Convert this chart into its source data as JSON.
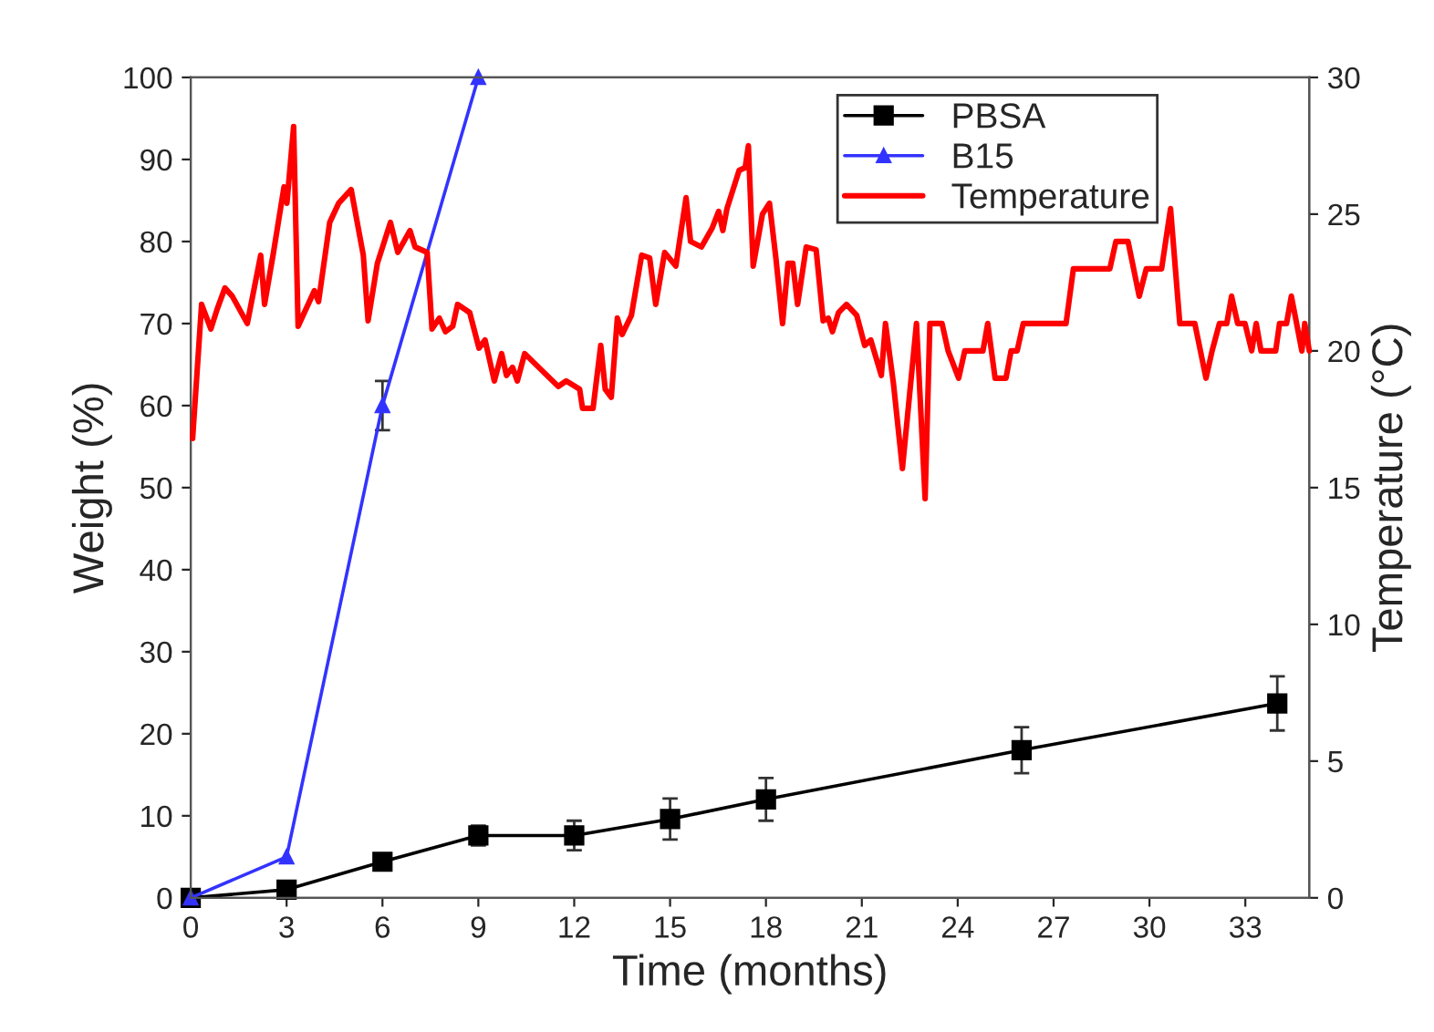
{
  "chart_data": {
    "type": "line",
    "xlabel": "Time (months)",
    "ylabel": "Weight (%)",
    "y2label": "Temperature (°C)",
    "xlim": [
      0,
      35
    ],
    "xticks": [
      0,
      3,
      6,
      9,
      12,
      15,
      18,
      21,
      24,
      27,
      30,
      33
    ],
    "ylim": [
      0,
      100
    ],
    "yticks": [
      0,
      10,
      20,
      30,
      40,
      50,
      60,
      70,
      80,
      90,
      100
    ],
    "y2lim": [
      0,
      30
    ],
    "y2ticks": [
      0,
      5,
      10,
      15,
      20,
      25,
      30
    ],
    "legend": "top right",
    "grid": false,
    "series": [
      {
        "name": "PBSA",
        "color": "#000000",
        "marker": "square",
        "x": [
          0,
          3,
          6,
          9,
          12,
          15,
          18,
          26,
          34
        ],
        "values": [
          0,
          1.0,
          4.4,
          7.6,
          7.6,
          9.6,
          12.0,
          18.0,
          23.7
        ],
        "errors": [
          null,
          null,
          0.7,
          1.2,
          1.8,
          2.5,
          2.6,
          2.8,
          3.3
        ]
      },
      {
        "name": "B15",
        "color": "#3333ff",
        "marker": "triangle",
        "x": [
          0,
          3,
          6,
          9
        ],
        "values": [
          0,
          5,
          60,
          100
        ],
        "errors": [
          null,
          null,
          3,
          null
        ]
      },
      {
        "name": "Temperature",
        "color": "#ff0000",
        "marker": "none",
        "axis": "y2",
        "x": [
          0.06,
          0.34,
          0.63,
          0.82,
          1.07,
          1.3,
          1.77,
          2.19,
          2.31,
          2.59,
          2.92,
          3.01,
          3.22,
          3.36,
          3.87,
          4.0,
          4.35,
          4.63,
          5.02,
          5.4,
          5.55,
          5.84,
          6.25,
          6.48,
          6.86,
          7.02,
          7.4,
          7.55,
          7.78,
          7.97,
          8.2,
          8.35,
          8.73,
          9.02,
          9.21,
          9.5,
          9.73,
          9.88,
          10.07,
          10.22,
          10.45,
          11.5,
          11.75,
          12.17,
          12.26,
          12.59,
          12.83,
          12.97,
          13.16,
          13.35,
          13.5,
          13.79,
          14.11,
          14.36,
          14.55,
          14.83,
          15.18,
          15.5,
          15.64,
          15.98,
          16.32,
          16.52,
          16.65,
          16.78,
          17.16,
          17.35,
          17.45,
          17.6,
          17.89,
          18.11,
          18.31,
          18.52,
          18.69,
          18.84,
          18.99,
          19.26,
          19.57,
          19.79,
          19.95,
          20.08,
          20.27,
          20.52,
          20.84,
          21.09,
          21.28,
          21.61,
          21.74,
          21.99,
          22.27,
          22.71,
          22.98,
          23.13,
          23.51,
          23.7,
          24.03,
          24.22,
          24.79,
          24.94,
          25.17,
          25.51,
          25.67,
          25.86,
          26.05,
          27.39,
          27.62,
          28.76,
          28.95,
          29.33,
          29.68,
          29.9,
          30.38,
          30.66,
          30.95,
          31.42,
          31.77,
          31.96,
          32.19,
          32.42,
          32.57,
          32.76,
          32.99,
          33.2,
          33.34,
          33.49,
          33.95,
          34.07,
          34.29,
          34.44,
          34.77,
          34.86,
          35.0
        ],
        "values": [
          16.8,
          21.7,
          20.8,
          21.5,
          22.3,
          22.0,
          21.0,
          23.5,
          21.7,
          23.6,
          26.0,
          25.4,
          28.2,
          20.9,
          22.2,
          21.8,
          24.7,
          25.4,
          25.9,
          23.5,
          21.1,
          23.2,
          24.7,
          23.6,
          24.4,
          23.8,
          23.6,
          20.8,
          21.2,
          20.7,
          20.9,
          21.7,
          21.4,
          20.1,
          20.4,
          18.9,
          19.9,
          19.1,
          19.4,
          18.9,
          19.9,
          18.7,
          18.9,
          18.6,
          17.9,
          17.9,
          20.2,
          18.6,
          18.3,
          21.2,
          20.6,
          21.3,
          23.5,
          23.4,
          21.7,
          23.6,
          23.1,
          25.6,
          24.0,
          23.8,
          24.5,
          25.1,
          24.4,
          25.2,
          26.6,
          26.7,
          27.5,
          23.1,
          25.0,
          25.4,
          23.4,
          21.0,
          23.2,
          23.2,
          21.7,
          23.8,
          23.7,
          21.1,
          21.2,
          20.7,
          21.4,
          21.7,
          21.3,
          20.2,
          20.4,
          19.1,
          21.0,
          18.8,
          15.7,
          21.0,
          14.6,
          21.0,
          21.0,
          20.0,
          19.0,
          20.0,
          20.0,
          21.0,
          19.0,
          19.0,
          20.0,
          20.0,
          21.0,
          21.0,
          23.0,
          23.0,
          24.0,
          24.0,
          22.0,
          23.0,
          23.0,
          25.2,
          21.0,
          21.0,
          19.0,
          20.0,
          21.0,
          21.0,
          22.0,
          21.0,
          21.0,
          20.0,
          21.0,
          20.0,
          20.0,
          21.0,
          21.0,
          22.0,
          20.0,
          21.0,
          20.0
        ]
      }
    ]
  }
}
